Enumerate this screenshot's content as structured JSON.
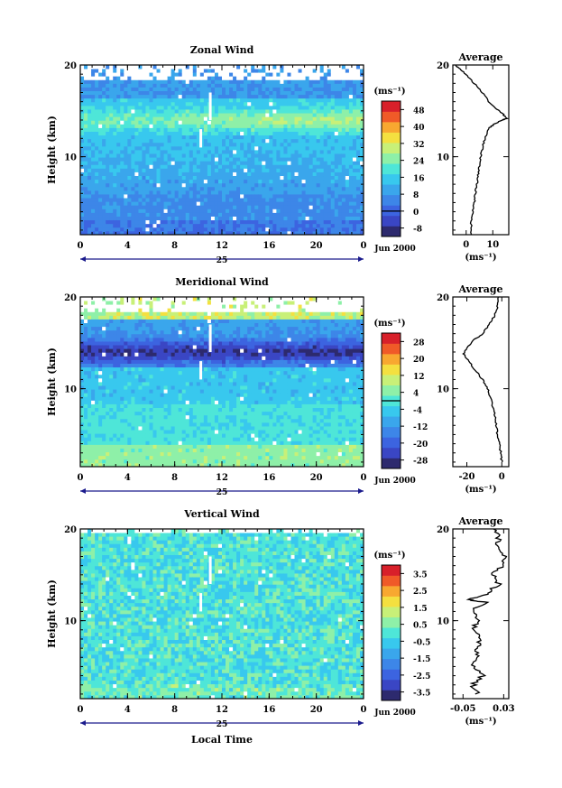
{
  "colors": {
    "axis": "#000000",
    "date_line": "#1a1a8c",
    "scale": [
      "#2d2a6e",
      "#3a46c4",
      "#3c64e0",
      "#3d86e8",
      "#3aa6ec",
      "#38c8ee",
      "#4ee6d8",
      "#8ef0a8",
      "#c8f078",
      "#f4e040",
      "#f8a830",
      "#f05a28",
      "#d8202a"
    ]
  },
  "chart_data": [
    {
      "type": "heatmap",
      "title": "Zonal Wind",
      "ylabel": "Height (km)",
      "xlabel": "",
      "x_ticks": [
        "0",
        "4",
        "8",
        "12",
        "16",
        "20",
        "0"
      ],
      "y_ticks": [
        "10",
        "20"
      ],
      "xlim": [
        0,
        24
      ],
      "ylim": [
        1.5,
        20
      ],
      "date_day": "25",
      "date_month": "Jun 2000",
      "colorbar": {
        "unit": "(ms⁻¹)",
        "ticks": [
          "48",
          "40",
          "32",
          "24",
          "16",
          "8",
          "0",
          "-8"
        ],
        "range": [
          -12,
          52
        ],
        "zero_line": 0
      },
      "profile": {
        "title": "Average",
        "xlabel": "(ms⁻¹)",
        "x_ticks": [
          "0",
          "10"
        ],
        "y_ticks": [
          "10",
          "20"
        ],
        "xlim": [
          -5,
          16
        ],
        "ylim": [
          1.5,
          20
        ],
        "points": [
          [
            2.0,
            1.5
          ],
          [
            1.8,
            3
          ],
          [
            2.5,
            4
          ],
          [
            3,
            5
          ],
          [
            3.5,
            6
          ],
          [
            4,
            7
          ],
          [
            4.5,
            8
          ],
          [
            5,
            9
          ],
          [
            5.5,
            10
          ],
          [
            6.2,
            11
          ],
          [
            7,
            12
          ],
          [
            8.2,
            13
          ],
          [
            10.2,
            13.5
          ],
          [
            13.5,
            14
          ],
          [
            15.5,
            14.2
          ],
          [
            14,
            14.6
          ],
          [
            11,
            15.3
          ],
          [
            8.5,
            16
          ],
          [
            6,
            17
          ],
          [
            3,
            18
          ],
          [
            0,
            19
          ],
          [
            -3,
            19.7
          ],
          [
            -4,
            20
          ]
        ]
      }
    },
    {
      "type": "heatmap",
      "title": "Meridional Wind",
      "ylabel": "Height (km)",
      "xlabel": "",
      "x_ticks": [
        "0",
        "4",
        "8",
        "12",
        "16",
        "20",
        "0"
      ],
      "y_ticks": [
        "10",
        "20"
      ],
      "xlim": [
        0,
        24
      ],
      "ylim": [
        1.5,
        20
      ],
      "date_day": "25",
      "date_month": "Jun 2000",
      "colorbar": {
        "unit": "(ms⁻¹)",
        "ticks": [
          "28",
          "20",
          "12",
          "4",
          "-4",
          "-12",
          "-20",
          "-28"
        ],
        "range": [
          -32,
          32
        ],
        "zero_line": 0
      },
      "profile": {
        "title": "Average",
        "xlabel": "(ms⁻¹)",
        "x_ticks": [
          "-20",
          "0"
        ],
        "y_ticks": [
          "10",
          "20"
        ],
        "xlim": [
          -28,
          4
        ],
        "ylim": [
          1.5,
          20
        ],
        "points": [
          [
            0,
            2
          ],
          [
            -0.5,
            3
          ],
          [
            -1.5,
            4
          ],
          [
            -2.5,
            5
          ],
          [
            -3,
            6
          ],
          [
            -4,
            7
          ],
          [
            -5,
            8
          ],
          [
            -6.5,
            9
          ],
          [
            -8,
            10
          ],
          [
            -11,
            11
          ],
          [
            -15,
            12
          ],
          [
            -19,
            13
          ],
          [
            -22,
            13.8
          ],
          [
            -20,
            14.5
          ],
          [
            -16,
            15.3
          ],
          [
            -11,
            16
          ],
          [
            -7,
            17
          ],
          [
            -4,
            18
          ],
          [
            -2.5,
            19
          ],
          [
            -2,
            20
          ]
        ]
      }
    },
    {
      "type": "heatmap",
      "title": "Vertical Wind",
      "ylabel": "Height (km)",
      "xlabel": "Local Time",
      "x_ticks": [
        "0",
        "4",
        "8",
        "12",
        "16",
        "20",
        "0"
      ],
      "y_ticks": [
        "10",
        "20"
      ],
      "xlim": [
        0,
        24
      ],
      "ylim": [
        1.5,
        20
      ],
      "date_day": "25",
      "date_month": "Jun 2000",
      "colorbar": {
        "unit": "(ms⁻¹)",
        "ticks": [
          "3.5",
          "2.5",
          "1.5",
          "0.5",
          "-0.5",
          "-1.5",
          "-2.5",
          "-3.5"
        ],
        "range": [
          -4,
          4
        ],
        "zero_line": null
      },
      "profile": {
        "title": "Average",
        "xlabel": "(ms⁻¹)",
        "x_ticks": [
          "-0.05",
          "0.03"
        ],
        "y_ticks": [
          "10",
          "20"
        ],
        "xlim": [
          -0.07,
          0.04
        ],
        "ylim": [
          1.5,
          20
        ],
        "points": [
          [
            -0.02,
            2
          ],
          [
            -0.03,
            3
          ],
          [
            -0.01,
            4
          ],
          [
            -0.03,
            5
          ],
          [
            -0.02,
            6
          ],
          [
            -0.025,
            7
          ],
          [
            -0.015,
            8
          ],
          [
            -0.03,
            9
          ],
          [
            -0.02,
            10
          ],
          [
            -0.035,
            11
          ],
          [
            -0.005,
            12
          ],
          [
            -0.04,
            12.3
          ],
          [
            0.0,
            13
          ],
          [
            0.02,
            14
          ],
          [
            0.01,
            15
          ],
          [
            0.025,
            16
          ],
          [
            0.03,
            17
          ],
          [
            0.015,
            18
          ],
          [
            0.02,
            19
          ],
          [
            0.01,
            20
          ]
        ]
      }
    }
  ]
}
